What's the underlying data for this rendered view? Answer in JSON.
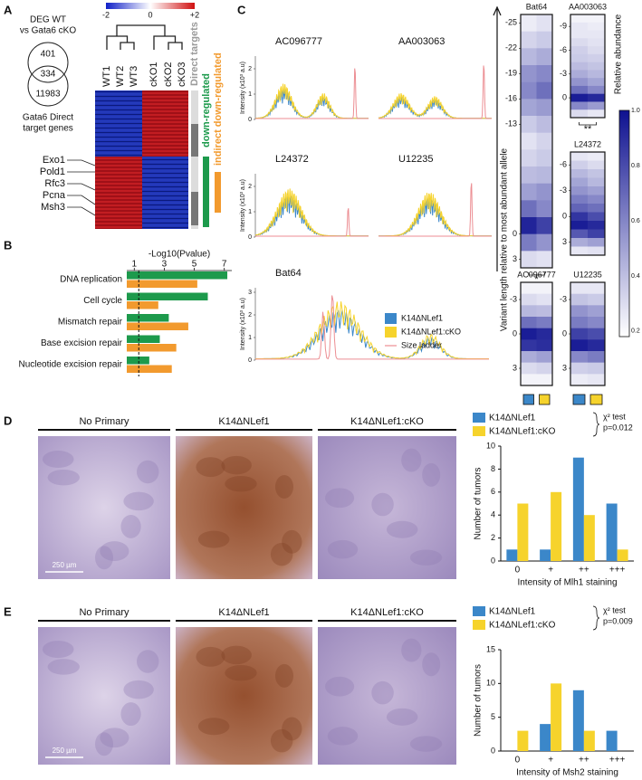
{
  "panel_labels": [
    "A",
    "B",
    "C",
    "D",
    "E"
  ],
  "panel_a": {
    "colorbar": {
      "lim": [
        -2,
        2
      ],
      "ticks": [
        -2,
        0,
        {
          "value": 2,
          "label": "+2"
        }
      ]
    },
    "venn": {
      "title": [
        "DEG WT",
        "vs Gata6 cKO"
      ],
      "counts": [
        401,
        334,
        11983
      ],
      "caption": [
        "Gata6 Direct",
        "target genes"
      ]
    },
    "genes": [
      "Exo1",
      "Pold1",
      "Rfc3",
      "Pcna",
      "Msh3"
    ],
    "samples": [
      "WT1",
      "WT2",
      "WT3",
      "cKO1",
      "cKO2",
      "cKO3"
    ],
    "side_labels": [
      "Direct targets",
      "down-regulated",
      "indirect down-regulated"
    ]
  },
  "panel_c": {
    "traces": {
      "ylabel": "Intensity (x10³ a.u)",
      "panels": [
        {
          "title": "AC096777",
          "ylim": [
            0,
            2.5
          ],
          "yticks": [
            0,
            1,
            2
          ]
        },
        {
          "title": "AA003063"
        },
        {
          "title": "L24372",
          "ylim": [
            0,
            2.5
          ],
          "yticks": [
            0,
            1,
            2
          ]
        },
        {
          "title": "U12235"
        },
        {
          "title": "Bat64",
          "ylim": [
            0,
            3.2
          ],
          "yticks": [
            0,
            1,
            2,
            3
          ]
        }
      ],
      "legend": [
        {
          "name": "K14ΔNLef1",
          "color": "#3b87c9"
        },
        {
          "name": "K14ΔNLef1:cKO",
          "color": "#f6d32c"
        },
        {
          "name": "Size ladder",
          "color": "#ec8e93"
        }
      ]
    },
    "heatmaps": {
      "ylabel": "Variant length relative to most abundant allele",
      "colorbar": {
        "title": "Relative abundance",
        "lim": [
          0.18,
          1.0
        ],
        "ticks": [
          0.2,
          0.4,
          0.6,
          0.8,
          {
            "value": 1.0,
            "label": "1.0"
          }
        ]
      },
      "panels": [
        {
          "title": "Bat64",
          "rows": [
            -25,
            -23,
            -21,
            -19,
            -17,
            -15,
            -13,
            -11,
            -9,
            -7,
            -5,
            -3,
            -1,
            1,
            3
          ],
          "yticks": [
            -25,
            -22,
            -19,
            -16,
            -13,
            0,
            3
          ],
          "columns": [
            [
              0.08,
              0.18,
              0.3,
              0.45,
              0.5,
              0.38,
              0.22,
              0.12,
              0.18,
              0.28,
              0.4,
              0.6,
              0.92,
              0.55,
              0.15
            ],
            [
              0.12,
              0.22,
              0.35,
              0.5,
              0.6,
              0.42,
              0.28,
              0.18,
              0.22,
              0.3,
              0.45,
              0.5,
              0.8,
              0.45,
              0.12
            ]
          ],
          "annotation": "*"
        },
        {
          "title": "AA003063",
          "rows": [
            -10,
            -9,
            -8,
            -7,
            -6,
            -5,
            -4,
            -3,
            -2,
            -1,
            0,
            1,
            2
          ],
          "yticks": [
            -9,
            -6,
            -3,
            0
          ],
          "columns": [
            [
              0.05,
              0.1,
              0.1,
              0.15,
              0.2,
              0.22,
              0.28,
              0.35,
              0.45,
              0.6,
              0.95,
              0.5,
              0.15
            ],
            [
              0.05,
              0.08,
              0.1,
              0.12,
              0.15,
              0.2,
              0.25,
              0.3,
              0.38,
              0.5,
              0.9,
              0.42,
              0.1
            ]
          ],
          "annotation": "**"
        },
        {
          "title": "L24372",
          "rows": [
            -7,
            -6,
            -5,
            -4,
            -3,
            -2,
            -1,
            0,
            1,
            2,
            3,
            4
          ],
          "yticks": [
            -6,
            -3,
            0,
            3
          ],
          "columns": [
            [
              0.1,
              0.2,
              0.3,
              0.38,
              0.45,
              0.55,
              0.65,
              0.85,
              0.95,
              0.7,
              0.35,
              0.1
            ],
            [
              0.08,
              0.15,
              0.25,
              0.3,
              0.4,
              0.5,
              0.6,
              0.75,
              0.9,
              0.8,
              0.4,
              0.12
            ]
          ]
        },
        {
          "title": "AC096777",
          "rows": [
            -4,
            -3,
            -2,
            -1,
            0,
            1,
            2,
            3,
            4
          ],
          "yticks": [
            -3,
            0,
            3
          ],
          "columns": [
            [
              0.05,
              0.15,
              0.3,
              0.6,
              0.95,
              0.85,
              0.35,
              0.15,
              0.05
            ],
            [
              0.05,
              0.12,
              0.28,
              0.55,
              0.9,
              0.88,
              0.4,
              0.18,
              0.05
            ]
          ]
        },
        {
          "title": "U12235",
          "rows": [
            -4,
            -3,
            -2,
            -1,
            0,
            1,
            2,
            3,
            4
          ],
          "yticks": [
            -3,
            0,
            3
          ],
          "columns": [
            [
              0.1,
              0.25,
              0.45,
              0.55,
              0.8,
              0.95,
              0.5,
              0.2,
              0.08
            ],
            [
              0.1,
              0.22,
              0.4,
              0.5,
              0.75,
              0.9,
              0.55,
              0.22,
              0.1
            ]
          ]
        }
      ]
    }
  },
  "panel_d": {
    "image_titles": [
      "No Primary",
      "K14ΔNLef1",
      "K14ΔNLef1:cKO"
    ],
    "scale_bar": "250 µm"
  },
  "panel_e": {
    "image_titles": [
      "No Primary",
      "K14ΔNLef1",
      "K14ΔNLef1:cKO"
    ],
    "scale_bar": "250 µm"
  },
  "chart_data": [
    {
      "type": "hbar",
      "title": "-Log10(Pvalue)",
      "categories": [
        "DNA replication",
        "Cell cycle",
        "Mismatch repair",
        "Base excision repair",
        "Nucleotide excision repair"
      ],
      "series": [
        {
          "color": "#1d9a4c",
          "values": [
            7.2,
            5.9,
            3.3,
            2.7,
            2.0
          ]
        },
        {
          "color": "#f29a2e",
          "values": [
            5.2,
            2.6,
            4.6,
            3.8,
            3.5
          ]
        }
      ],
      "xlim": [
        0.5,
        7.5
      ],
      "xticks": [
        1,
        3,
        5,
        7
      ],
      "reference_line": 1.3
    },
    {
      "type": "bar",
      "categories": [
        "0",
        "+",
        "++",
        "+++"
      ],
      "series": [
        {
          "name": "K14ΔNLef1",
          "color": "#3b87c9",
          "values": [
            1,
            1,
            9,
            5
          ]
        },
        {
          "name": "K14ΔNLef1:cKO",
          "color": "#f6d32c",
          "values": [
            5,
            6,
            4,
            1
          ]
        }
      ],
      "ylim": [
        0,
        10
      ],
      "yticks": [
        0,
        2,
        4,
        6,
        8,
        10
      ],
      "ylabel": "Number of tumors",
      "xlabel": "Intensity of Mlh1 staining",
      "annotation": [
        "χ² test",
        "p=0.012"
      ]
    },
    {
      "type": "bar",
      "categories": [
        "0",
        "+",
        "++",
        "+++"
      ],
      "series": [
        {
          "name": "K14ΔNLef1",
          "color": "#3b87c9",
          "values": [
            0,
            4,
            9,
            3
          ]
        },
        {
          "name": "K14ΔNLef1:cKO",
          "color": "#f6d32c",
          "values": [
            3,
            10,
            3,
            0
          ]
        }
      ],
      "ylim": [
        0,
        15
      ],
      "yticks": [
        0,
        5,
        10,
        15
      ],
      "ylabel": "Number of tumors",
      "xlabel": "Intensity of Msh2 staining",
      "annotation": [
        "χ² test",
        "p=0.009"
      ]
    }
  ]
}
